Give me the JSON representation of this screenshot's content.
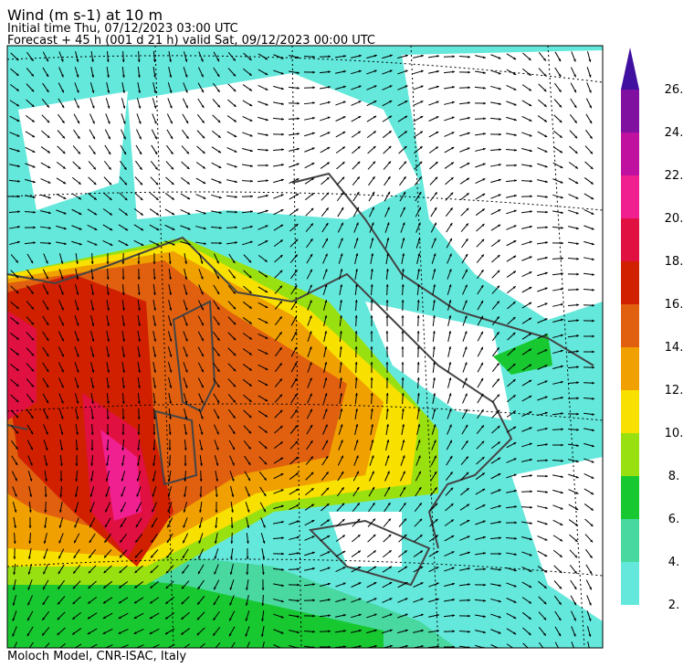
{
  "header": {
    "title": "Wind (m s-1) at 10 m",
    "initial_time": "Initial time  Thu, 07/12/2023  03:00 UTC",
    "forecast": "Forecast  +  45 h  (001 d 21 h)  valid Sat, 09/12/2023 00:00 UTC"
  },
  "colorbar": {
    "labels": [
      "2.",
      "4.",
      "6.",
      "8.",
      "10.",
      "12.",
      "14.",
      "16.",
      "18.",
      "20.",
      "22.",
      "24.",
      "26."
    ],
    "colors": [
      "#64e8dc",
      "#48d8a0",
      "#18c830",
      "#98e010",
      "#f8e000",
      "#f0a000",
      "#e06010",
      "#d02000",
      "#e01040",
      "#f02090",
      "#c010a0",
      "#8010a0"
    ],
    "extend_color": "#4010a0"
  },
  "footer": "Moloch Model, CNR-ISAC, Italy"
}
